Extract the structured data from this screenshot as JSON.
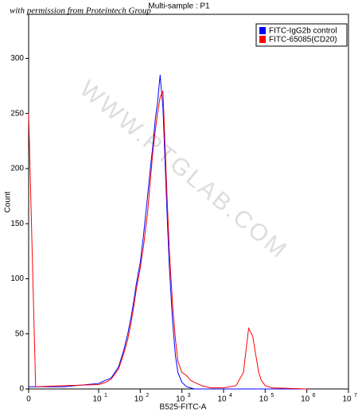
{
  "chart_data": {
    "type": "line",
    "title": "Multi-sample : P1",
    "watermark": "WWW.PTGLAB.COM",
    "credit": "with permission from Proteintech Group",
    "x_label": "B525-FITC-A",
    "y_label": "Count",
    "x": [
      0,
      1,
      5,
      10,
      15,
      20,
      30,
      40,
      50,
      60,
      70,
      80,
      100,
      120,
      150,
      180,
      200,
      230,
      260,
      300,
      350,
      400,
      450,
      500,
      600,
      700,
      800,
      1000,
      1300,
      1600,
      2000,
      3000,
      5000,
      10000,
      20000,
      30000,
      40000,
      50000,
      60000,
      70000,
      80000,
      100000,
      150000,
      1000000
    ],
    "series": [
      {
        "name": "FITC-IgG2b control",
        "color": "#0000ff",
        "values": [
          2,
          2,
          2,
          5,
          8,
          10,
          20,
          35,
          50,
          65,
          80,
          95,
          115,
          140,
          175,
          205,
          220,
          245,
          260,
          285,
          255,
          200,
          150,
          110,
          60,
          30,
          15,
          6,
          2,
          1,
          0,
          0,
          0,
          0,
          0,
          0,
          0,
          0,
          0,
          0,
          0,
          0,
          0,
          0
        ]
      },
      {
        "name": "FITC-65085(CD20)",
        "color": "#ff0000",
        "values": [
          250,
          2,
          3,
          4,
          6,
          9,
          18,
          32,
          45,
          60,
          75,
          90,
          110,
          130,
          160,
          195,
          215,
          235,
          250,
          265,
          270,
          215,
          165,
          125,
          75,
          45,
          25,
          15,
          12,
          8,
          6,
          3,
          1,
          1,
          3,
          15,
          55,
          48,
          30,
          15,
          8,
          3,
          1,
          0
        ]
      }
    ],
    "xlim": [
      0,
      10000000
    ],
    "ylim": [
      0,
      340
    ],
    "yticks": [
      0,
      50,
      100,
      150,
      200,
      250,
      300
    ],
    "xticks": [
      0,
      {
        "value": 10,
        "label": "10",
        "exponent": "1"
      },
      {
        "value": 100,
        "label": "10",
        "exponent": "2"
      },
      {
        "value": 1000,
        "label": "10",
        "exponent": "3"
      },
      {
        "value": 10000,
        "label": "10",
        "exponent": "4"
      },
      {
        "value": 100000,
        "label": "10",
        "exponent": "5"
      },
      {
        "value": 1000000,
        "label": "10",
        "exponent": "6"
      },
      {
        "value": 10000000,
        "label": "10",
        "exponent": "7"
      }
    ],
    "legend": "top-right"
  }
}
